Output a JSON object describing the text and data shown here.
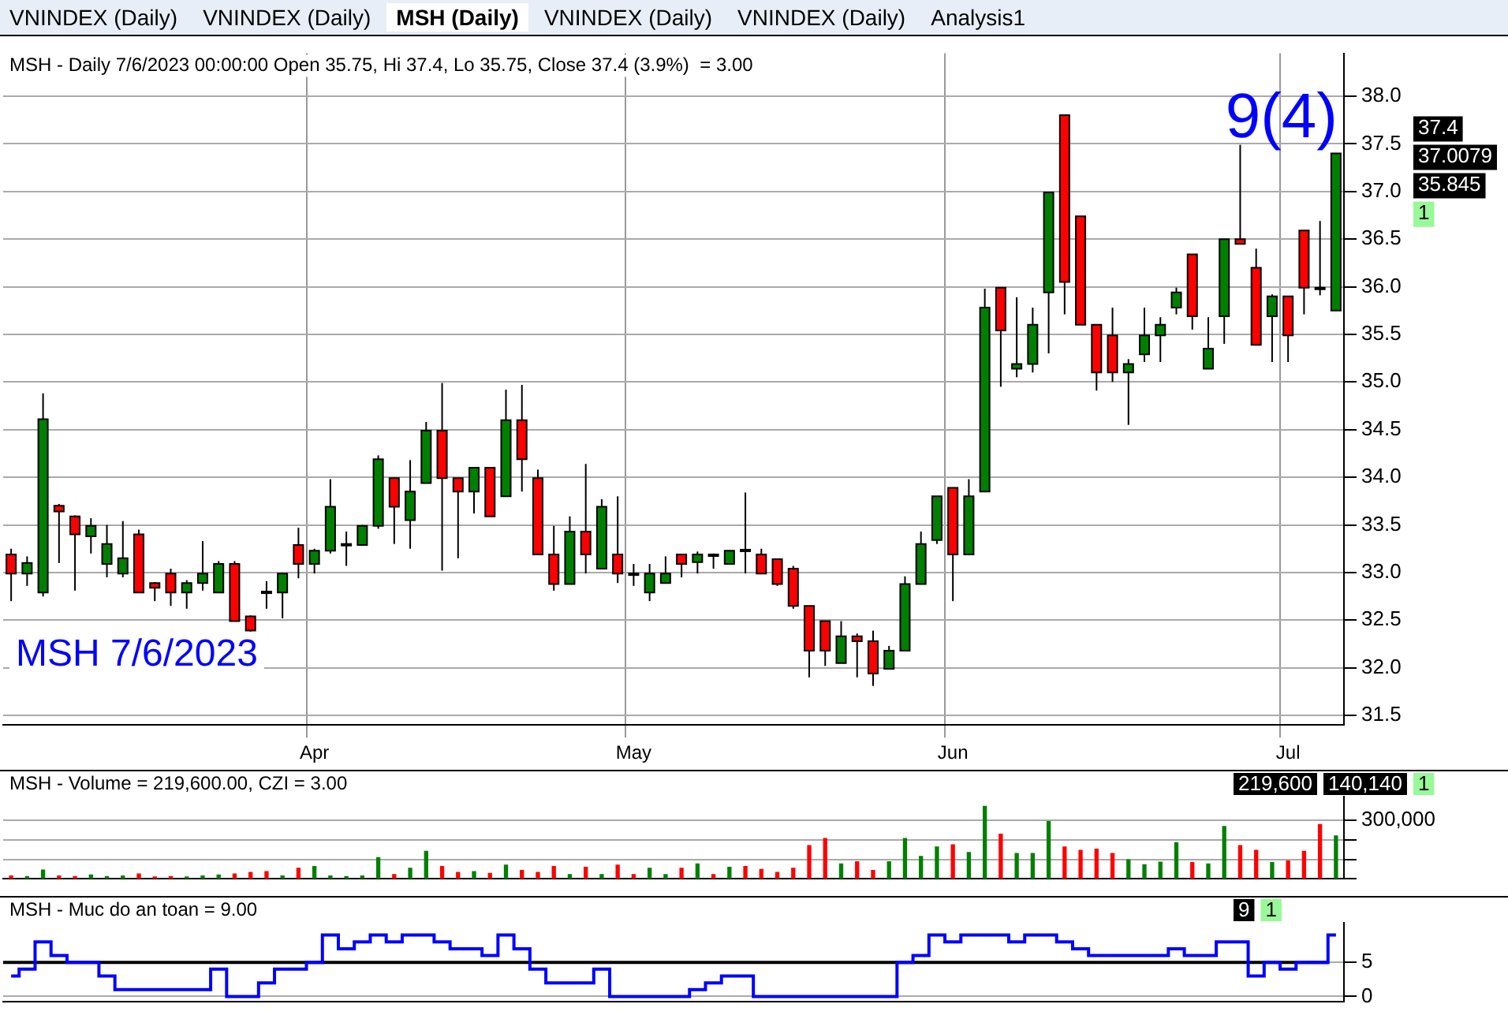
{
  "chart_data": [
    {
      "type": "candlestick",
      "title": "MSH - Daily 7/6/2023 00:00:00 Open 35.75, Hi 37.4, Lo 35.75, Close 37.4 (3.9%)  = 3.00",
      "categories": [
        null,
        null,
        null,
        null,
        null,
        null,
        null,
        null,
        null,
        null,
        null,
        null,
        null,
        null,
        null,
        null,
        null,
        null,
        null,
        "Apr",
        null,
        null,
        null,
        null,
        null,
        null,
        null,
        null,
        null,
        null,
        null,
        null,
        null,
        null,
        null,
        null,
        null,
        null,
        null,
        "May",
        null,
        null,
        null,
        null,
        null,
        null,
        null,
        null,
        null,
        null,
        null,
        null,
        null,
        null,
        null,
        null,
        null,
        null,
        null,
        "Jun",
        null,
        null,
        null,
        null,
        null,
        null,
        null,
        null,
        null,
        null,
        null,
        null,
        null,
        null,
        null,
        null,
        null,
        null,
        null,
        null,
        "Jul",
        null,
        null,
        null
      ],
      "ohlc": [
        [
          33.19,
          33.25,
          32.7,
          32.99
        ],
        [
          32.99,
          33.17,
          32.86,
          33.1
        ],
        [
          32.79,
          34.88,
          32.75,
          34.61
        ],
        [
          33.7,
          33.72,
          33.1,
          33.64
        ],
        [
          33.59,
          33.6,
          32.81,
          33.4
        ],
        [
          33.38,
          33.57,
          33.2,
          33.49
        ],
        [
          33.09,
          33.5,
          32.95,
          33.3
        ],
        [
          32.99,
          33.54,
          32.95,
          33.15
        ],
        [
          33.4,
          33.45,
          32.79,
          32.79
        ],
        [
          32.89,
          32.9,
          32.7,
          32.84
        ],
        [
          32.99,
          33.04,
          32.65,
          32.79
        ],
        [
          32.79,
          32.92,
          32.62,
          32.89
        ],
        [
          32.89,
          33.33,
          32.81,
          32.99
        ],
        [
          32.79,
          33.12,
          32.79,
          33.09
        ],
        [
          33.09,
          33.12,
          32.49,
          32.49
        ],
        [
          32.54,
          32.55,
          32.38,
          32.39
        ],
        [
          32.8,
          32.91,
          32.62,
          32.79
        ],
        [
          32.79,
          33.0,
          32.52,
          32.99
        ],
        [
          33.29,
          33.47,
          32.94,
          33.09
        ],
        [
          33.09,
          33.25,
          32.99,
          33.23
        ],
        [
          33.23,
          33.98,
          33.2,
          33.69
        ],
        [
          33.3,
          33.43,
          33.07,
          33.3
        ],
        [
          33.29,
          33.5,
          33.28,
          33.49
        ],
        [
          33.49,
          34.23,
          33.46,
          34.19
        ],
        [
          33.99,
          34.0,
          33.3,
          33.69
        ],
        [
          33.55,
          34.18,
          33.25,
          33.85
        ],
        [
          33.94,
          34.58,
          33.94,
          34.49
        ],
        [
          34.49,
          34.99,
          33.02,
          33.99
        ],
        [
          33.99,
          33.99,
          33.15,
          33.85
        ],
        [
          33.85,
          34.1,
          33.62,
          34.1
        ],
        [
          34.1,
          34.1,
          33.59,
          33.59
        ],
        [
          33.8,
          34.92,
          33.8,
          34.6
        ],
        [
          34.6,
          34.97,
          33.85,
          34.19
        ],
        [
          33.99,
          34.08,
          33.19,
          33.19
        ],
        [
          33.19,
          33.49,
          32.81,
          32.88
        ],
        [
          32.88,
          33.59,
          32.88,
          33.43
        ],
        [
          33.43,
          34.14,
          32.99,
          33.19
        ],
        [
          33.04,
          33.77,
          33.04,
          33.69
        ],
        [
          33.19,
          33.8,
          32.89,
          32.99
        ],
        [
          32.99,
          33.09,
          32.86,
          32.99
        ],
        [
          32.79,
          33.09,
          32.7,
          32.99
        ],
        [
          32.89,
          33.17,
          32.89,
          32.99
        ],
        [
          33.19,
          33.19,
          32.95,
          33.09
        ],
        [
          33.11,
          33.22,
          32.99,
          33.19
        ],
        [
          33.19,
          33.2,
          33.04,
          33.19
        ],
        [
          33.09,
          33.23,
          33.09,
          33.23
        ],
        [
          33.24,
          33.84,
          32.99,
          33.24
        ],
        [
          33.19,
          33.25,
          32.99,
          32.99
        ],
        [
          33.14,
          33.14,
          32.86,
          32.88
        ],
        [
          33.04,
          33.07,
          32.62,
          32.65
        ],
        [
          32.65,
          32.65,
          31.9,
          32.18
        ],
        [
          32.49,
          32.49,
          32.02,
          32.18
        ],
        [
          32.05,
          32.49,
          32.05,
          32.33
        ],
        [
          32.33,
          32.36,
          31.9,
          32.28
        ],
        [
          32.28,
          32.39,
          31.81,
          31.94
        ],
        [
          31.99,
          32.23,
          31.99,
          32.18
        ],
        [
          32.18,
          32.96,
          32.18,
          32.88
        ],
        [
          32.88,
          33.43,
          32.88,
          33.3
        ],
        [
          33.34,
          33.8,
          33.3,
          33.8
        ],
        [
          33.89,
          33.89,
          32.7,
          33.19
        ],
        [
          33.19,
          33.98,
          33.19,
          33.8
        ],
        [
          33.85,
          35.98,
          33.85,
          35.78
        ],
        [
          35.99,
          35.99,
          34.95,
          35.54
        ],
        [
          35.14,
          35.89,
          35.05,
          35.19
        ],
        [
          35.19,
          35.78,
          35.1,
          35.6
        ],
        [
          35.94,
          36.99,
          35.3,
          36.99
        ],
        [
          37.8,
          37.8,
          35.71,
          36.05
        ],
        [
          36.74,
          36.74,
          35.6,
          35.6
        ],
        [
          35.6,
          35.6,
          34.91,
          35.1
        ],
        [
          35.49,
          35.78,
          35.0,
          35.1
        ],
        [
          35.1,
          35.24,
          34.55,
          35.19
        ],
        [
          35.29,
          35.78,
          35.21,
          35.49
        ],
        [
          35.49,
          35.68,
          35.21,
          35.6
        ],
        [
          35.78,
          35.99,
          35.71,
          35.94
        ],
        [
          36.34,
          36.34,
          35.55,
          35.69
        ],
        [
          35.14,
          35.68,
          35.14,
          35.35
        ],
        [
          35.69,
          36.5,
          35.4,
          36.5
        ],
        [
          36.5,
          37.49,
          36.45,
          36.45
        ],
        [
          36.2,
          36.4,
          35.39,
          35.39
        ],
        [
          35.69,
          35.92,
          35.21,
          35.9
        ],
        [
          35.9,
          35.9,
          35.21,
          35.49
        ],
        [
          36.59,
          36.59,
          35.71,
          35.99
        ],
        [
          35.99,
          36.69,
          35.91,
          35.99
        ],
        [
          35.75,
          37.4,
          35.75,
          37.4
        ]
      ],
      "colors": [
        "#ff0000",
        "#008000",
        "#008000",
        "#ff0000",
        "#ff0000",
        "#008000",
        "#008000",
        "#008000",
        "#ff0000",
        "#ff0000",
        "#ff0000",
        "#008000",
        "#008000",
        "#008000",
        "#ff0000",
        "#ff0000",
        "#ff0000",
        "#008000",
        "#ff0000",
        "#008000",
        "#008000",
        "#008000",
        "#008000",
        "#008000",
        "#ff0000",
        "#008000",
        "#008000",
        "#ff0000",
        "#ff0000",
        "#008000",
        "#ff0000",
        "#008000",
        "#ff0000",
        "#ff0000",
        "#ff0000",
        "#008000",
        "#ff0000",
        "#008000",
        "#ff0000",
        "#ff0000",
        "#008000",
        "#008000",
        "#ff0000",
        "#008000",
        "#ff0000",
        "#008000",
        "#ff0000",
        "#ff0000",
        "#ff0000",
        "#ff0000",
        "#ff0000",
        "#ff0000",
        "#008000",
        "#ff0000",
        "#ff0000",
        "#008000",
        "#008000",
        "#008000",
        "#008000",
        "#ff0000",
        "#008000",
        "#008000",
        "#ff0000",
        "#008000",
        "#008000",
        "#008000",
        "#ff0000",
        "#ff0000",
        "#ff0000",
        "#ff0000",
        "#008000",
        "#008000",
        "#008000",
        "#008000",
        "#ff0000",
        "#008000",
        "#008000",
        "#ff0000",
        "#ff0000",
        "#008000",
        "#ff0000",
        "#ff0000",
        "#ff0000",
        "#008000"
      ],
      "ylim": [
        31.4,
        38.45
      ],
      "yticks": [
        {
          "value": 31.5,
          "label": "31.5"
        },
        {
          "value": 32,
          "label": "32.0"
        },
        {
          "value": 32.5,
          "label": "32.5"
        },
        {
          "value": 33,
          "label": "33.0"
        },
        {
          "value": 33.5,
          "label": "33.5"
        },
        {
          "value": 34,
          "label": "34.0"
        },
        {
          "value": 34.5,
          "label": "34.5"
        },
        {
          "value": 35,
          "label": "35.0"
        },
        {
          "value": 35.5,
          "label": "35.5"
        },
        {
          "value": 36,
          "label": "36.0"
        },
        {
          "value": 36.5,
          "label": "36.5"
        },
        {
          "value": 37,
          "label": "37.0"
        },
        {
          "value": 37.5,
          "label": "37.5"
        },
        {
          "value": 38,
          "label": "38.0"
        }
      ],
      "grid": true,
      "annotations": [
        "VNINDEX (Daily)",
        "VNINDEX (Daily)",
        "MSH (Daily)",
        "VNINDEX (Daily)",
        "VNINDEX (Daily)",
        "Analysis1",
        "MSH 7/6/2023",
        "9(4)",
        "37.4",
        "37.0079",
        "35.845",
        "1"
      ]
    },
    {
      "type": "bar",
      "title": "MSH - Volume = 219,600.00, CZI = 3.00",
      "values": [
        15000,
        12000,
        45000,
        15000,
        12000,
        20000,
        12000,
        15000,
        25000,
        10000,
        12000,
        10000,
        15000,
        20000,
        25000,
        33000,
        37000,
        15000,
        54000,
        63000,
        15000,
        12000,
        15000,
        109000,
        22000,
        54000,
        141000,
        63000,
        33000,
        37000,
        28000,
        70000,
        43000,
        33000,
        63000,
        22000,
        59000,
        22000,
        70000,
        22000,
        54000,
        22000,
        54000,
        76000,
        22000,
        59000,
        63000,
        48000,
        33000,
        54000,
        170000,
        206000,
        76000,
        87000,
        43000,
        87000,
        206000,
        115000,
        163000,
        174000,
        135000,
        370000,
        228000,
        130000,
        130000,
        293000,
        163000,
        146000,
        152000,
        130000,
        98000,
        72000,
        85000,
        185000,
        83000,
        76000,
        267000,
        170000,
        146000,
        83000,
        91000,
        141000,
        278000,
        219600
      ],
      "colors": [
        "#ff0000",
        "#008000",
        "#008000",
        "#ff0000",
        "#ff0000",
        "#008000",
        "#008000",
        "#008000",
        "#ff0000",
        "#ff0000",
        "#ff0000",
        "#008000",
        "#008000",
        "#008000",
        "#ff0000",
        "#ff0000",
        "#ff0000",
        "#008000",
        "#ff0000",
        "#008000",
        "#008000",
        "#008000",
        "#008000",
        "#008000",
        "#ff0000",
        "#008000",
        "#008000",
        "#ff0000",
        "#ff0000",
        "#008000",
        "#ff0000",
        "#008000",
        "#ff0000",
        "#ff0000",
        "#ff0000",
        "#008000",
        "#ff0000",
        "#008000",
        "#ff0000",
        "#ff0000",
        "#008000",
        "#008000",
        "#ff0000",
        "#008000",
        "#ff0000",
        "#008000",
        "#ff0000",
        "#ff0000",
        "#ff0000",
        "#ff0000",
        "#ff0000",
        "#ff0000",
        "#008000",
        "#ff0000",
        "#ff0000",
        "#008000",
        "#008000",
        "#008000",
        "#008000",
        "#ff0000",
        "#008000",
        "#008000",
        "#ff0000",
        "#008000",
        "#008000",
        "#008000",
        "#ff0000",
        "#ff0000",
        "#ff0000",
        "#ff0000",
        "#008000",
        "#008000",
        "#008000",
        "#008000",
        "#ff0000",
        "#008000",
        "#008000",
        "#ff0000",
        "#ff0000",
        "#008000",
        "#ff0000",
        "#ff0000",
        "#ff0000",
        "#008000"
      ],
      "ylim": [
        0,
        420000
      ],
      "yticks": [
        {
          "value": 0,
          "label": null
        },
        {
          "value": 100000,
          "label": null
        },
        {
          "value": 200000,
          "label": null
        },
        {
          "value": 300000,
          "label": "300,000"
        }
      ],
      "grid": "y",
      "tick_labels": "y",
      "annotations": [
        "219,600",
        "140,140",
        "1"
      ]
    },
    {
      "type": "step",
      "title": "MSH - Muc do an toan = 9.00",
      "series": [
        {
          "color": "#0000ff",
          "values": [
            3,
            4,
            8,
            6,
            5,
            5,
            3,
            1,
            1,
            1,
            1,
            1,
            1,
            4,
            0,
            0,
            2,
            4,
            4,
            5,
            9,
            7,
            8,
            9,
            8,
            9,
            9,
            8,
            7,
            7,
            6,
            9,
            7,
            4,
            2,
            2,
            2,
            4,
            0,
            0,
            0,
            0,
            0,
            1,
            2,
            3,
            3,
            0,
            0,
            0,
            0,
            0,
            0,
            0,
            0,
            0,
            5,
            6,
            9,
            8,
            9,
            9,
            9,
            8,
            9,
            9,
            8,
            7,
            6,
            6,
            6,
            6,
            6,
            7,
            6,
            6,
            8,
            8,
            3,
            5,
            4,
            5,
            5,
            9
          ]
        }
      ],
      "ylim": [
        -0.8,
        10.8
      ],
      "yticks": [
        0,
        5
      ],
      "ref_lines": [
        {
          "axis": "y",
          "value": 5,
          "color": "#000000"
        }
      ],
      "grid": "y",
      "tick_labels": "y",
      "annotations": [
        "9",
        "1"
      ]
    }
  ]
}
